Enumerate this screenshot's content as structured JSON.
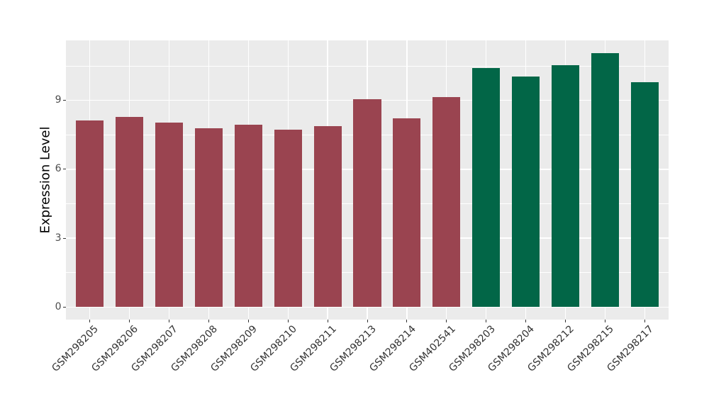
{
  "figure": {
    "background": "#FFFFFF",
    "panel_background": "#EBEBEB",
    "grid_color": "#FFFFFF",
    "tick_color": "#333333",
    "axis_text_color": "#4D4D4D",
    "axis_title_color": "#000000"
  },
  "chart_data": {
    "type": "bar",
    "title": "",
    "xlabel": "",
    "ylabel": "Expression Level",
    "categories": [
      "GSM298205",
      "GSM298206",
      "GSM298207",
      "GSM298208",
      "GSM298209",
      "GSM298210",
      "GSM298211",
      "GSM298213",
      "GSM298214",
      "GSM402541",
      "GSM298203",
      "GSM298204",
      "GSM298212",
      "GSM298215",
      "GSM298217"
    ],
    "values": [
      8.12,
      8.29,
      8.04,
      7.8,
      7.93,
      7.72,
      7.87,
      9.05,
      8.22,
      9.14,
      10.41,
      10.06,
      10.54,
      11.07,
      9.79
    ],
    "bar_groups": [
      "group-a",
      "group-a",
      "group-a",
      "group-a",
      "group-a",
      "group-a",
      "group-a",
      "group-a",
      "group-a",
      "group-a",
      "group-b",
      "group-b",
      "group-b",
      "group-b",
      "group-b"
    ],
    "group_colors": {
      "group-a": "#9A4450",
      "group-b": "#026647"
    },
    "ylim": [
      -0.55,
      11.62
    ],
    "yticks": [
      0,
      3,
      6,
      9
    ],
    "yticks_minor": [
      1.5,
      4.5,
      7.5,
      10.5
    ],
    "grid": true,
    "legend": "none"
  }
}
